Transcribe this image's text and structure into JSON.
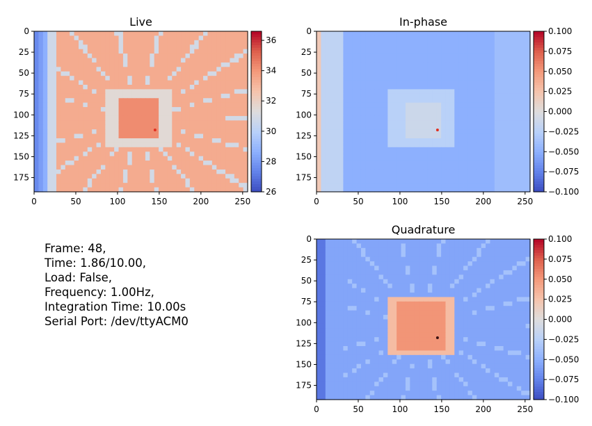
{
  "chart_data": [
    {
      "type": "heatmap",
      "title": "Live",
      "image_width": 256,
      "image_height": 192,
      "xlim": [
        0,
        256
      ],
      "ylim": [
        192,
        0
      ],
      "xticks": [
        0,
        50,
        100,
        150,
        200,
        250
      ],
      "yticks": [
        0,
        25,
        50,
        75,
        100,
        125,
        150,
        175
      ],
      "colormap": "coolwarm",
      "clim": [
        26,
        36.6
      ],
      "colorbar_ticks": [
        26,
        28,
        30,
        32,
        34,
        36
      ],
      "colorbar_labels": [
        "26",
        "28",
        "30",
        "32",
        "34",
        "36"
      ],
      "image_description": "Thermal view of a square IC package with surrounding pin traces; chip body and board mostly warm (~33-34), cooler left edge (~27) and trace lines (~30-31)",
      "die_region": {
        "x": [
          85,
          165
        ],
        "y": [
          70,
          140
        ]
      },
      "hotspot": {
        "x": 145,
        "y": 118
      }
    },
    {
      "type": "heatmap",
      "title": "In-phase",
      "image_width": 256,
      "image_height": 192,
      "xlim": [
        0,
        256
      ],
      "ylim": [
        192,
        0
      ],
      "xticks": [
        0,
        50,
        100,
        150,
        200,
        250
      ],
      "yticks": [
        0,
        25,
        50,
        75,
        100,
        125,
        150,
        175
      ],
      "colormap": "coolwarm",
      "clim": [
        -0.1,
        0.1
      ],
      "colorbar_ticks": [
        -0.1,
        -0.075,
        -0.05,
        -0.025,
        0.0,
        0.025,
        0.05,
        0.075,
        0.1
      ],
      "colorbar_labels": [
        "−0.100",
        "−0.075",
        "−0.050",
        "−0.025",
        "0.000",
        "0.025",
        "0.050",
        "0.075",
        "0.100"
      ],
      "image_description": "Mostly negative (blue, ~-0.05); die region near zero (light); small red hotspot near x=145, y=118",
      "die_region": {
        "x": [
          85,
          165
        ],
        "y": [
          70,
          140
        ]
      },
      "hotspot": {
        "x": 145,
        "y": 118
      }
    },
    {
      "type": "heatmap",
      "title": "Quadrature",
      "image_width": 256,
      "image_height": 192,
      "xlim": [
        0,
        256
      ],
      "ylim": [
        192,
        0
      ],
      "xticks": [
        0,
        50,
        100,
        150,
        200,
        250
      ],
      "yticks": [
        0,
        25,
        50,
        75,
        100,
        125,
        150,
        175
      ],
      "colormap": "coolwarm",
      "clim": [
        -0.1,
        0.1
      ],
      "colorbar_ticks": [
        -0.1,
        -0.075,
        -0.05,
        -0.025,
        0.0,
        0.025,
        0.05,
        0.075,
        0.1
      ],
      "colorbar_labels": [
        "−0.100",
        "−0.075",
        "−0.050",
        "−0.025",
        "0.000",
        "0.025",
        "0.050",
        "0.075",
        "0.100"
      ],
      "image_description": "Background negative (blue, ~-0.05); die region strongly positive (red-orange, ~0.06-0.08); dark spot near x=145, y=118",
      "die_region": {
        "x": [
          85,
          165
        ],
        "y": [
          70,
          140
        ]
      },
      "hotspot": {
        "x": 145,
        "y": 118
      }
    }
  ],
  "info": {
    "frame": "Frame: 48,",
    "time": "Time: 1.86/10.00,",
    "load": "Load: False,",
    "frequency": "Frequency: 1.00Hz,",
    "integration": "Integration Time: 10.00s",
    "serial": "Serial Port: /dev/ttyACM0"
  }
}
